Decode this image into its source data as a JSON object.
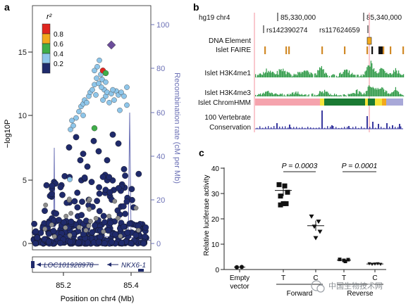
{
  "panels": {
    "a": "a",
    "b": "b",
    "c": "c"
  },
  "colors": {
    "navy": "#1f2a6b",
    "blue_axis": "#6b70b5",
    "grey_pt": "#8c8c8c",
    "light_blue": "#8ec6ea",
    "green": "#3fae49",
    "orange": "#f2a81d",
    "red": "#e0261f",
    "purple": "#6b4c9a",
    "track_green": "#2e9a47",
    "pink": "#f5a3ad",
    "dark_green": "#1a7a33",
    "yellow": "#f5e43a",
    "lavender": "#a8a8d8",
    "cons_blue": "#3a3aa0",
    "faire": "#d18a28"
  },
  "panel_a": {
    "y_left_label": "−log10P",
    "y_left_ticks": [
      "0",
      "5",
      "10",
      "15"
    ],
    "y_right_label": "Recombination rate (cM per Mb)",
    "y_right_ticks": [
      "0",
      "20",
      "40",
      "60",
      "80",
      "100"
    ],
    "x_label": "Position on chr4 (Mb)",
    "x_ticks": [
      "85.2",
      "85.4"
    ],
    "legend_title": "r²",
    "legend_labels": [
      "0.8",
      "0.6",
      "0.4",
      "0.2"
    ],
    "gene_left": "LOC101928978",
    "gene_right": "NKX6-1"
  },
  "panel_b": {
    "assembly": "hg19 chr4",
    "coord1": "85,330,000",
    "coord2": "85,340,000",
    "snp1": "rs142390274",
    "snp2": "rs117624659",
    "track_dna": "DNA Element",
    "track_faire": "Islet FAIRE",
    "track_k4me1": "Islet H3K4me1",
    "track_k4me3": "Islet H3K4me3",
    "track_chromhmm": "Islet ChromHMM",
    "track_cons1": "100 Vertebrate",
    "track_cons2": "Conservation"
  },
  "panel_c": {
    "ylabel": "Relative luciferase activity",
    "y_ticks": [
      "0",
      "10",
      "20",
      "30",
      "40"
    ],
    "pval1": "P = 0.0003",
    "pval2": "P = 0.0001",
    "x_empty1": "Empty",
    "x_empty2": "vector",
    "x_t1": "T",
    "x_c1": "C",
    "x_t2": "T",
    "x_c2": "C",
    "group_forward": "Forward",
    "group_reverse": "Reverse"
  },
  "watermark": "中国生物技术网"
}
